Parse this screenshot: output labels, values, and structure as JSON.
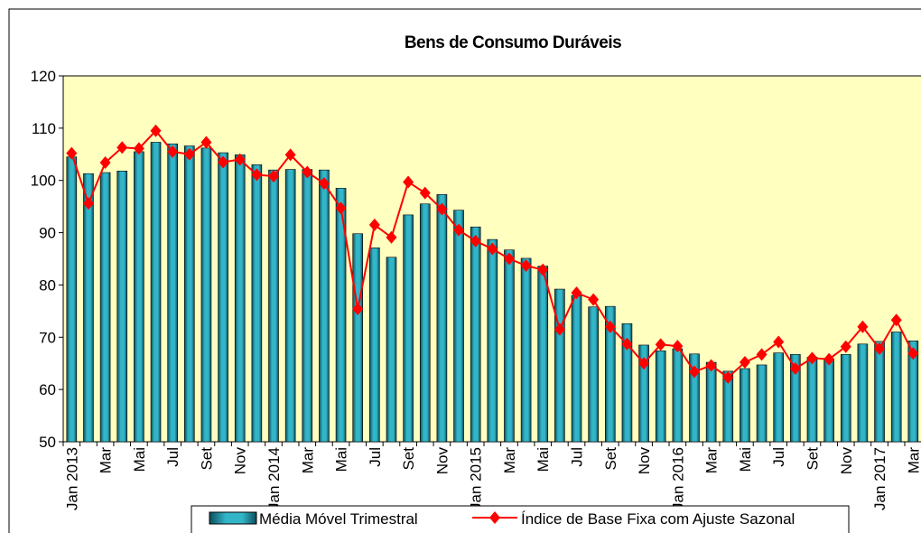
{
  "chart_data": {
    "type": "bar-line",
    "title": "Bens de Consumo Duráveis",
    "categories": [
      "Jan 2013",
      null,
      "Mar",
      null,
      "Mai",
      null,
      "Jul",
      null,
      "Set",
      null,
      "Nov",
      null,
      "Jan 2014",
      null,
      "Mar",
      null,
      "Mai",
      null,
      "Jul",
      null,
      "Set",
      null,
      "Nov",
      null,
      "Jan 2015",
      null,
      "Mar",
      null,
      "Mai",
      null,
      "Jul",
      null,
      "Set",
      null,
      "Nov",
      null,
      "Jan 2016",
      null,
      "Mar",
      null,
      "Mai",
      null,
      "Jul",
      null,
      "Set",
      null,
      "Nov",
      null,
      "Jan 2017",
      null,
      "Mar"
    ],
    "series": [
      {
        "name": "Média Móvel Trimestral",
        "type": "bar",
        "color": "#33b5c8",
        "values": [
          104.5,
          101.3,
          101.5,
          101.8,
          105.5,
          107.3,
          107.0,
          106.6,
          106.2,
          105.3,
          104.9,
          103.0,
          102.0,
          102.1,
          102.1,
          102.0,
          98.5,
          89.8,
          87.1,
          85.3,
          93.4,
          95.5,
          97.3,
          94.3,
          91.1,
          88.7,
          86.7,
          85.1,
          83.6,
          79.2,
          78.0,
          75.8,
          75.9,
          72.6,
          68.5,
          67.4,
          67.8,
          66.8,
          65.2,
          63.5,
          64.0,
          64.7,
          67.0,
          66.7,
          66.2,
          65.8,
          66.7,
          68.7,
          69.2,
          71.0,
          69.3
        ]
      },
      {
        "name": "Índice de Base Fixa com Ajuste Sazonal",
        "type": "line",
        "color": "#ff0000",
        "values": [
          105.2,
          95.6,
          103.4,
          106.3,
          106.1,
          109.5,
          105.5,
          105.0,
          107.3,
          103.5,
          104.0,
          101.1,
          100.8,
          104.9,
          101.6,
          99.4,
          94.7,
          75.4,
          91.5,
          89.1,
          99.7,
          97.6,
          94.5,
          90.5,
          88.4,
          86.9,
          85.0,
          83.7,
          82.9,
          71.5,
          78.5,
          77.2,
          72.0,
          68.7,
          65.0,
          68.6,
          68.3,
          63.4,
          64.6,
          62.3,
          65.2,
          66.7,
          69.1,
          64.0,
          66.0,
          65.8,
          68.2,
          72.0,
          67.8,
          73.3,
          66.9
        ]
      }
    ],
    "ylim": [
      50,
      120
    ],
    "yticks": [
      50,
      60,
      70,
      80,
      90,
      100,
      110,
      120
    ],
    "grid": false,
    "plot_background": "#ffffc0",
    "legend": "bottom"
  }
}
